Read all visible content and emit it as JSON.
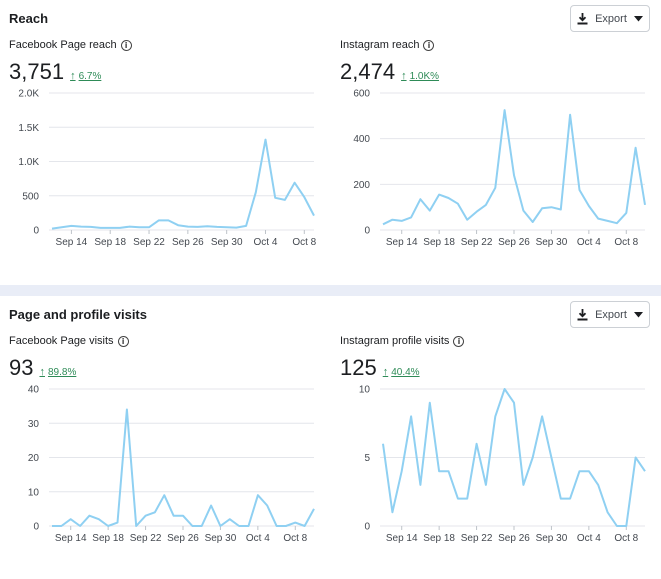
{
  "reach": {
    "title": "Reach",
    "export_label": "Export",
    "facebook": {
      "label": "Facebook Page reach",
      "value": "3,751",
      "change": "6.7%"
    },
    "instagram": {
      "label": "Instagram reach",
      "value": "2,474",
      "change": "1.0K%"
    }
  },
  "visits": {
    "title": "Page and profile visits",
    "export_label": "Export",
    "facebook": {
      "label": "Facebook Page visits",
      "value": "93",
      "change": "89.8%"
    },
    "instagram": {
      "label": "Instagram profile visits",
      "value": "125",
      "change": "40.4%"
    }
  },
  "colors": {
    "line": "#8fd0f2",
    "positive": "#2e8b57",
    "grid": "#e4e6eb"
  },
  "chart_data": [
    {
      "id": "fb-reach",
      "type": "line",
      "x_tick_labels": [
        "Sep 14",
        "Sep 18",
        "Sep 22",
        "Sep 26",
        "Sep 30",
        "Oct 4",
        "Oct 8"
      ],
      "x_tick_index": [
        2,
        6,
        10,
        14,
        18,
        22,
        26
      ],
      "y_ticks": [
        "0",
        "500",
        "1.0K",
        "1.5K",
        "2.0K"
      ],
      "ylim": [
        0,
        2000
      ],
      "values": [
        20,
        40,
        60,
        50,
        45,
        30,
        30,
        30,
        50,
        40,
        40,
        140,
        140,
        70,
        50,
        45,
        55,
        45,
        40,
        35,
        60,
        550,
        1320,
        470,
        440,
        690,
        480,
        210
      ]
    },
    {
      "id": "ig-reach",
      "type": "line",
      "x_tick_labels": [
        "Sep 14",
        "Sep 18",
        "Sep 22",
        "Sep 26",
        "Sep 30",
        "Oct 4",
        "Oct 8"
      ],
      "x_tick_index": [
        2,
        6,
        10,
        14,
        18,
        22,
        26
      ],
      "y_ticks": [
        "0",
        "200",
        "400",
        "600"
      ],
      "ylim": [
        0,
        600
      ],
      "values": [
        25,
        45,
        40,
        55,
        135,
        85,
        155,
        140,
        115,
        45,
        80,
        110,
        185,
        525,
        240,
        85,
        35,
        95,
        100,
        90,
        505,
        175,
        105,
        50,
        40,
        30,
        75,
        360,
        110
      ]
    },
    {
      "id": "fb-visits",
      "type": "line",
      "x_tick_labels": [
        "Sep 14",
        "Sep 18",
        "Sep 22",
        "Sep 26",
        "Sep 30",
        "Oct 4",
        "Oct 8"
      ],
      "x_tick_index": [
        2,
        6,
        10,
        14,
        18,
        22,
        26
      ],
      "y_ticks": [
        "0",
        "10",
        "20",
        "30",
        "40"
      ],
      "ylim": [
        0,
        40
      ],
      "values": [
        0,
        0,
        2,
        0,
        3,
        2,
        0,
        1,
        34,
        0,
        3,
        4,
        9,
        3,
        3,
        0,
        0,
        6,
        0,
        2,
        0,
        0,
        9,
        6,
        0,
        0,
        1,
        0,
        5
      ]
    },
    {
      "id": "ig-visits",
      "type": "line",
      "x_tick_labels": [
        "Sep 14",
        "Sep 18",
        "Sep 22",
        "Sep 26",
        "Sep 30",
        "Oct 4",
        "Oct 8"
      ],
      "x_tick_index": [
        2,
        6,
        10,
        14,
        18,
        22,
        26
      ],
      "y_ticks": [
        "0",
        "5",
        "10"
      ],
      "ylim": [
        0,
        10
      ],
      "values": [
        6,
        1,
        4,
        8,
        3,
        9,
        4,
        4,
        2,
        2,
        6,
        3,
        8,
        10,
        9,
        3,
        5,
        8,
        5,
        2,
        2,
        4,
        4,
        3,
        1,
        0,
        0,
        5,
        4
      ]
    }
  ]
}
